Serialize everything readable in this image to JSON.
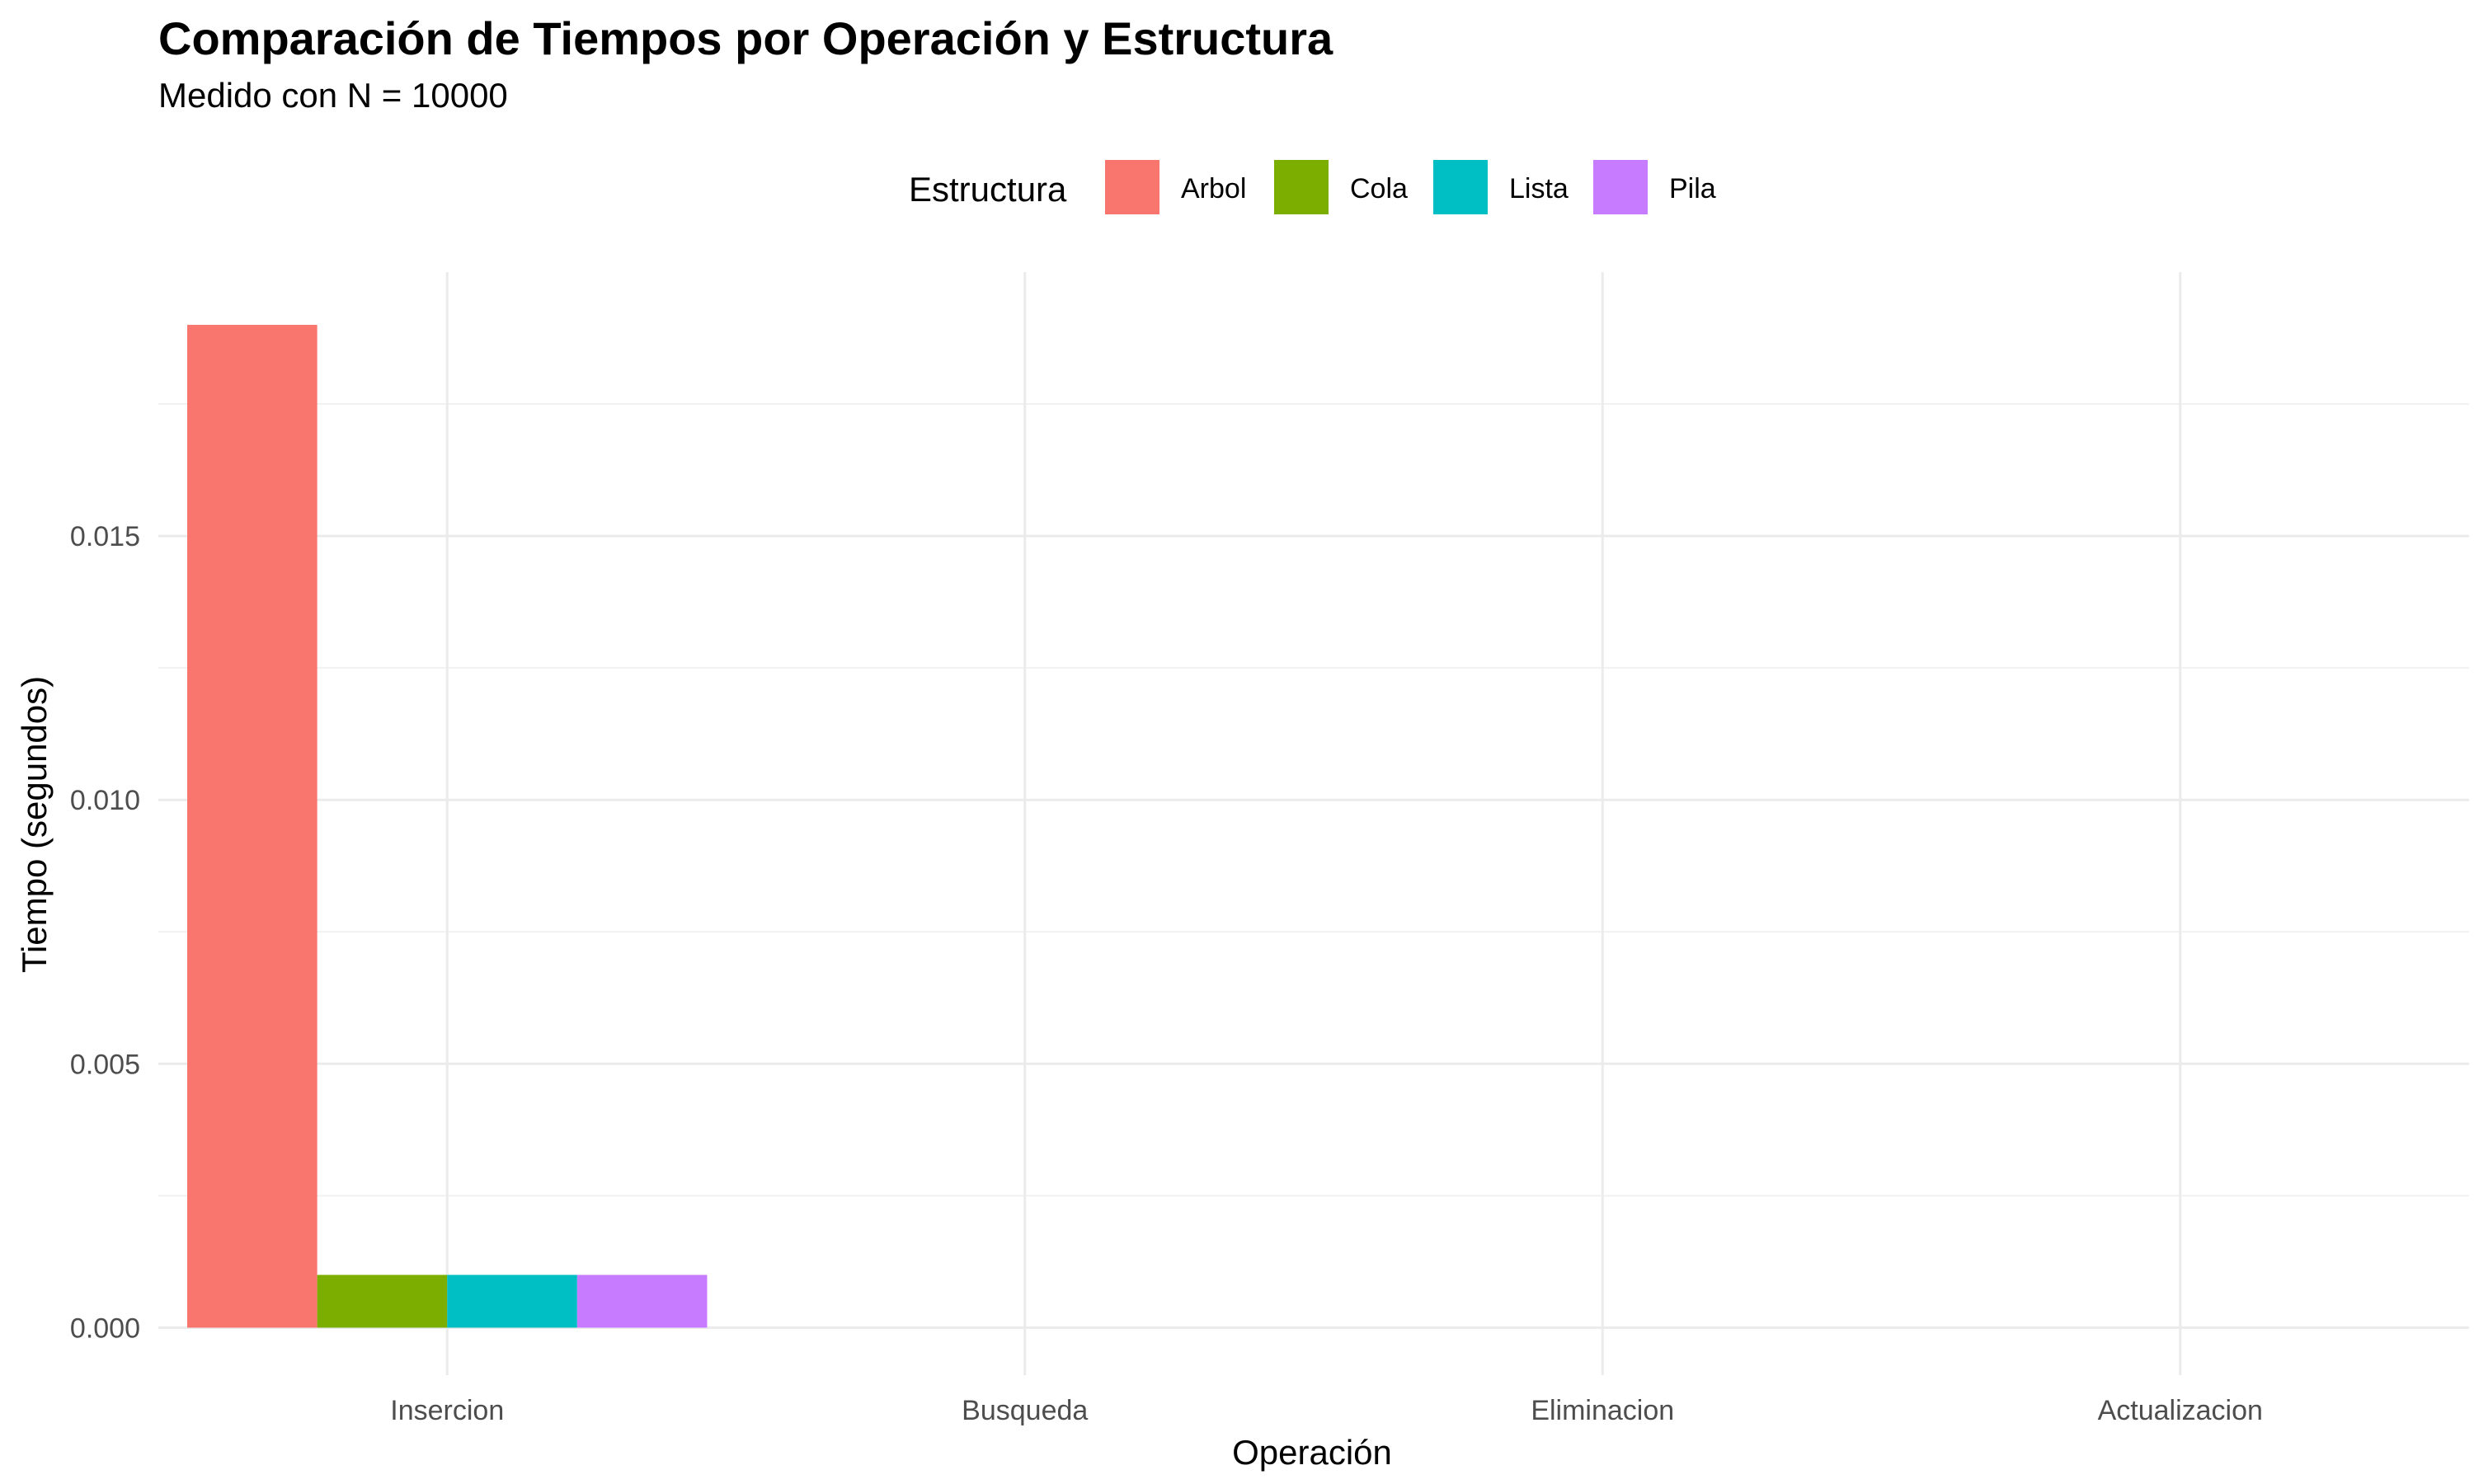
{
  "chart_data": {
    "type": "bar",
    "title": "Comparación de Tiempos por Operación y Estructura",
    "subtitle": "Medido con N = 10000",
    "xlabel": "Operación",
    "ylabel": "Tiempo (segundos)",
    "categories": [
      "Insercion",
      "Busqueda",
      "Eliminacion",
      "Actualizacion"
    ],
    "legend_title": "Estructura",
    "legend_position": "top",
    "ylim": [
      -0.0009,
      0.02
    ],
    "yticks": [
      0.0,
      0.005,
      0.01,
      0.015
    ],
    "ytick_labels": [
      "0.000",
      "0.005",
      "0.010",
      "0.015"
    ],
    "grid": true,
    "series": [
      {
        "name": "Arbol",
        "color": "#F8766D",
        "values": [
          0.019,
          0,
          0,
          0
        ]
      },
      {
        "name": "Cola",
        "color": "#7CAE00",
        "values": [
          0.001,
          0,
          0,
          0
        ]
      },
      {
        "name": "Lista",
        "color": "#00BFC4",
        "values": [
          0.001,
          0,
          0,
          0
        ]
      },
      {
        "name": "Pila",
        "color": "#C77CFF",
        "values": [
          0.001,
          0,
          0,
          0
        ]
      }
    ]
  }
}
